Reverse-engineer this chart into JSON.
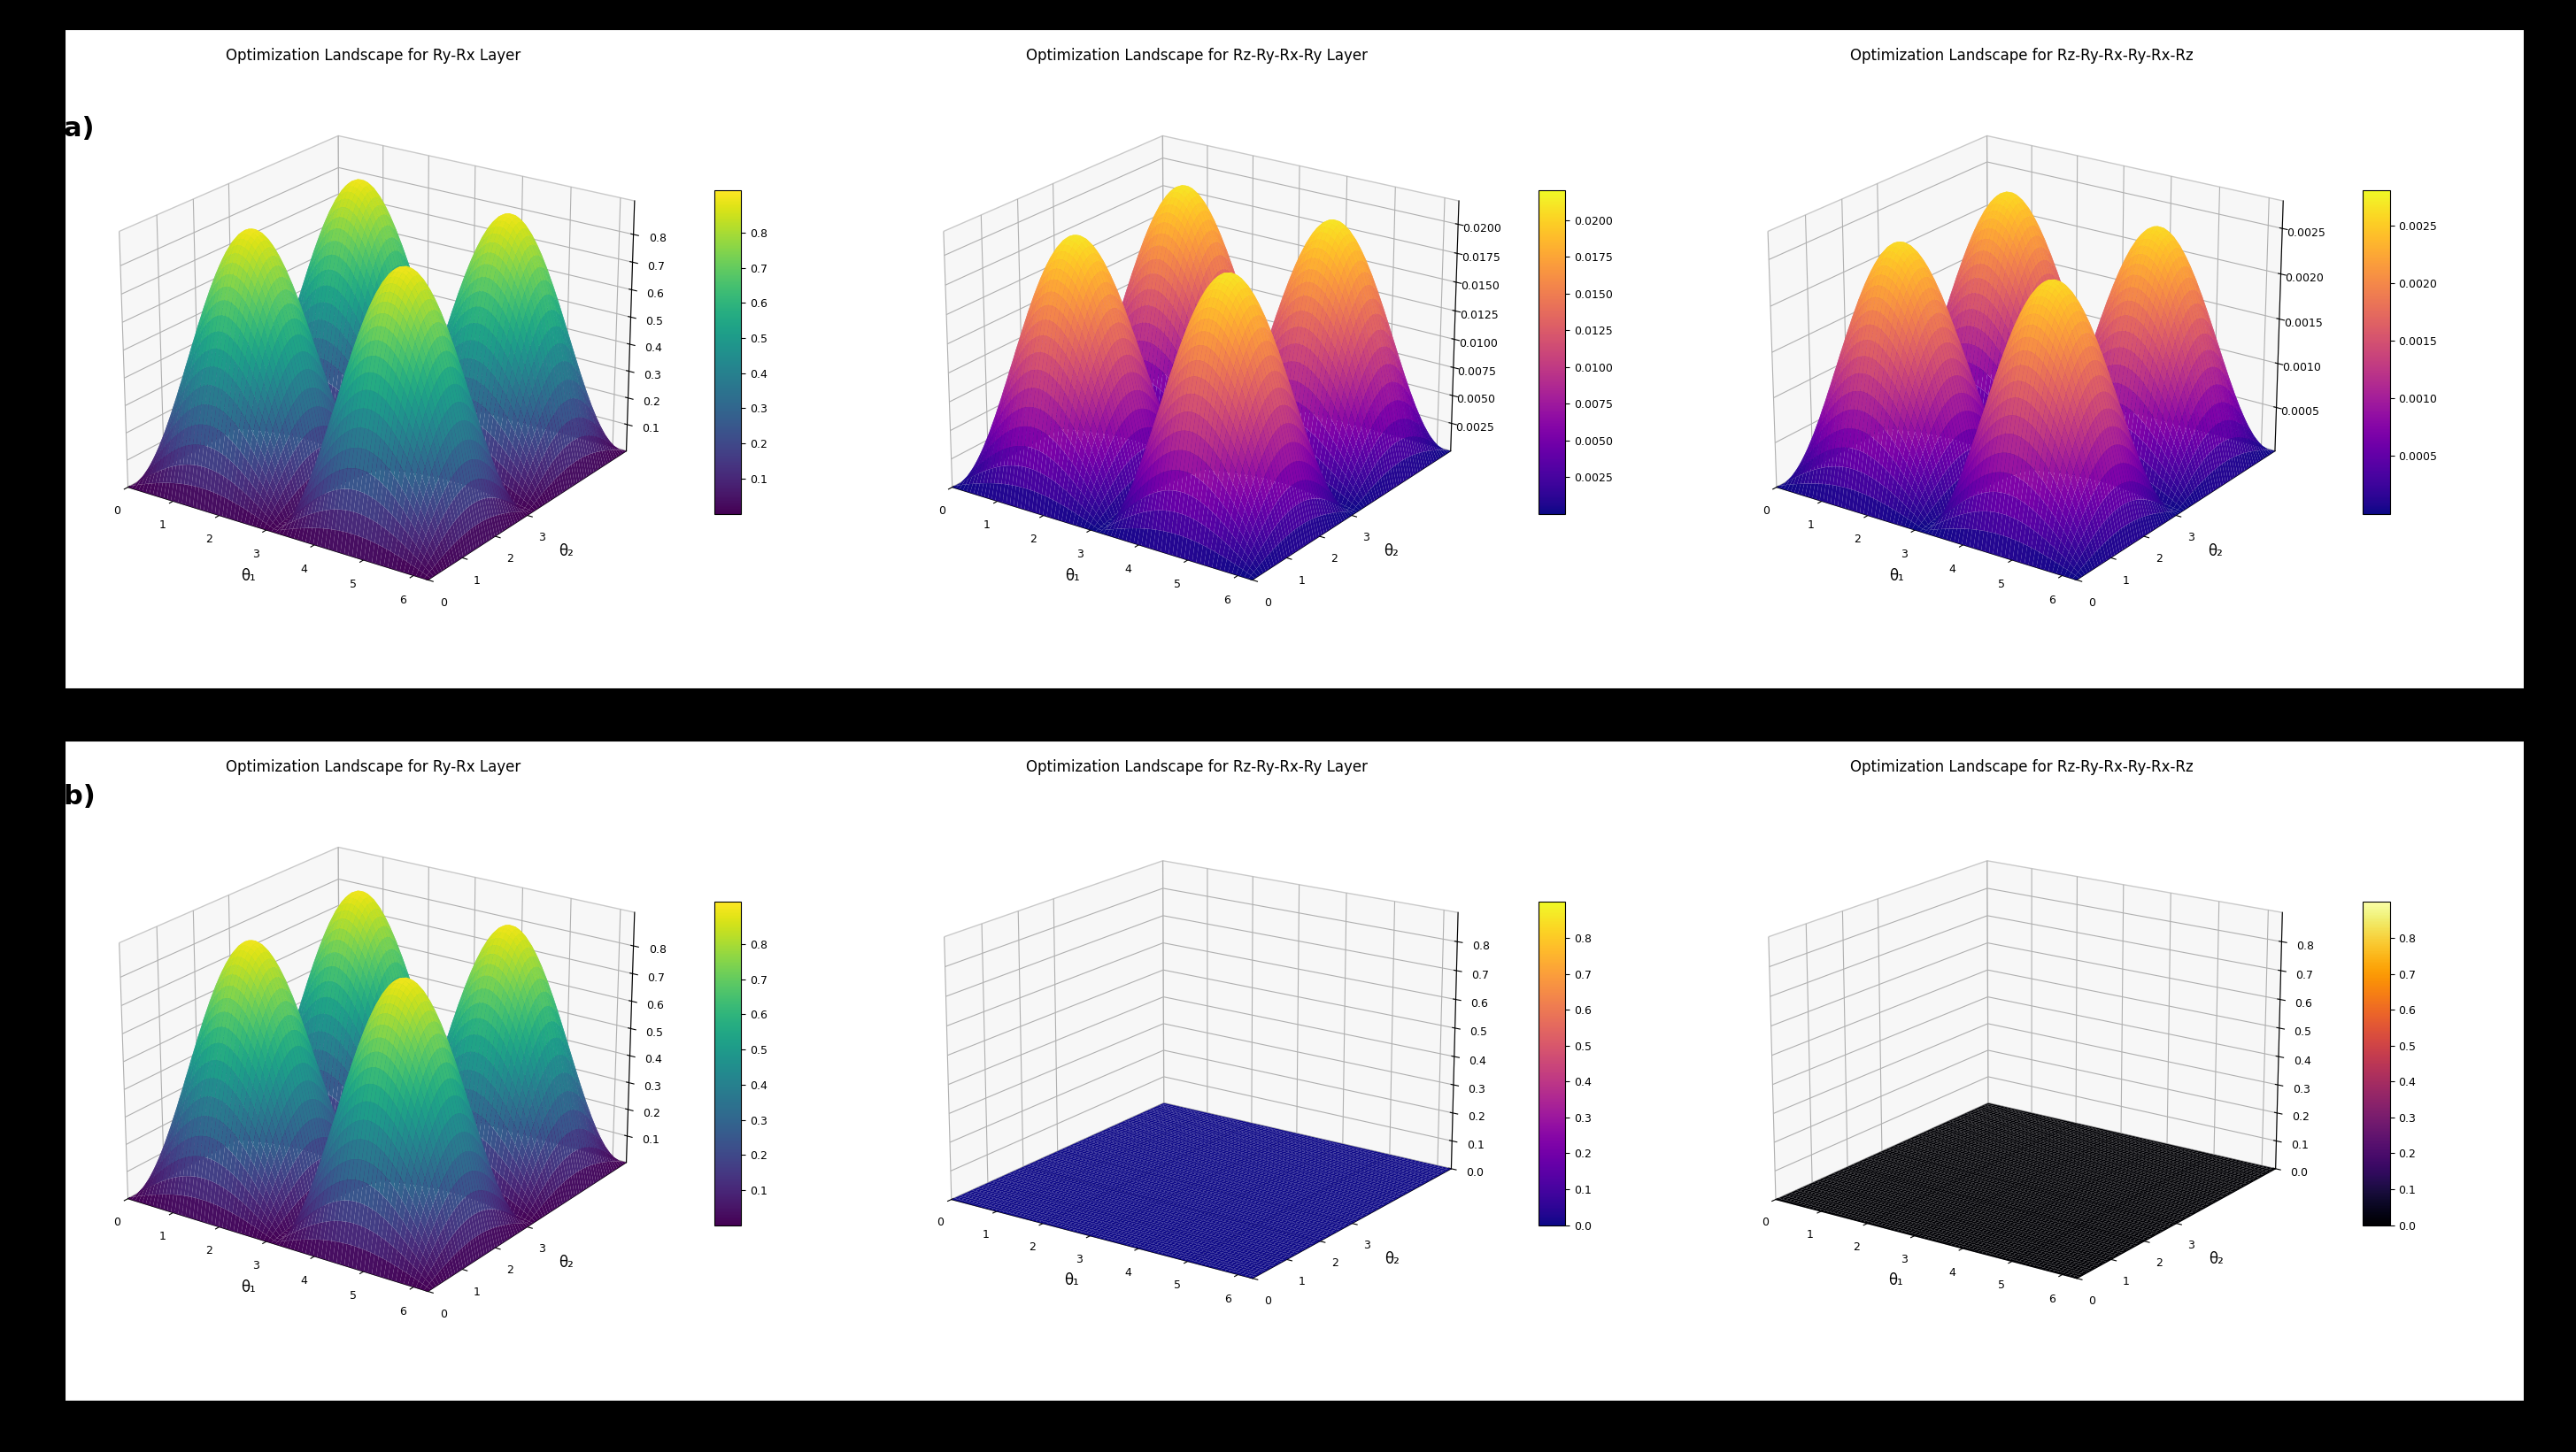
{
  "titles_row1": [
    "Optimization Landscape for Ry-Rx Layer",
    "Optimization Landscape for Rz-Ry-Rx-Ry Layer",
    "Optimization Landscape for Rz-Ry-Rx-Ry-Rx-Rz"
  ],
  "titles_row2": [
    "Optimization Landscape for Ry-Rx Layer",
    "Optimization Landscape for Rz-Ry-Rx-Ry Layer",
    "Optimization Landscape for Rz-Ry-Rx-Ry-Rx-Rz"
  ],
  "colormaps_row1": [
    "viridis",
    "plasma",
    "plasma"
  ],
  "colormaps_row2": [
    "viridis",
    "plasma",
    "inferno"
  ],
  "xlabel": "θ₁",
  "ylabel": "θ₂",
  "fig_bg": "#000000",
  "subplot_bg": "#ffffff",
  "pane_color": [
    0.94,
    0.94,
    0.94,
    1.0
  ],
  "label_fontsize": 12,
  "title_fontsize": 12,
  "tick_fontsize": 9,
  "panel_labels": [
    "(a)",
    "(b)"
  ],
  "panel_label_fontsize": 22,
  "row1_zlims": [
    0.92,
    0.022,
    0.0028
  ],
  "row2_zlims": [
    0.92,
    0.9,
    0.9
  ],
  "row1_zticks": [
    [
      0.1,
      0.2,
      0.3,
      0.4,
      0.5,
      0.6,
      0.7,
      0.8
    ],
    [
      0.0025,
      0.005,
      0.0075,
      0.01,
      0.0125,
      0.015,
      0.0175,
      0.02
    ],
    [
      0.0005,
      0.001,
      0.0015,
      0.002,
      0.0025
    ]
  ],
  "row2_zticks": [
    [
      0.1,
      0.2,
      0.3,
      0.4,
      0.5,
      0.6,
      0.7,
      0.8
    ],
    [
      0.0,
      0.1,
      0.2,
      0.3,
      0.4,
      0.5,
      0.6,
      0.7,
      0.8
    ],
    [
      0.0,
      0.1,
      0.2,
      0.3,
      0.4,
      0.5,
      0.6,
      0.7,
      0.8
    ]
  ],
  "row1_ztick_labels": [
    [
      "0.1",
      "0.2",
      "0.3",
      "0.4",
      "0.5",
      "0.6",
      "0.7",
      "0.8"
    ],
    [
      "0.0025",
      "0.0050",
      "0.0075",
      "0.0100",
      "0.0125",
      "0.0150",
      "0.0175",
      "0.0200"
    ],
    [
      "0.0005",
      "0.0010",
      "0.0015",
      "0.0020",
      "0.0025"
    ]
  ],
  "row2_ztick_labels": [
    [
      "0.1",
      "0.2",
      "0.3",
      "0.4",
      "0.5",
      "0.6",
      "0.7",
      "0.8"
    ],
    [
      "0.0",
      "0.1",
      "0.2",
      "0.3",
      "0.4",
      "0.5",
      "0.6",
      "0.7",
      "0.8"
    ],
    [
      "0.0",
      "0.1",
      "0.2",
      "0.3",
      "0.4",
      "0.5",
      "0.6",
      "0.7",
      "0.8"
    ]
  ],
  "grid_res": 80,
  "elev": 22,
  "azim": -55,
  "view_elev_flat": 18,
  "view_azim_flat": -55
}
